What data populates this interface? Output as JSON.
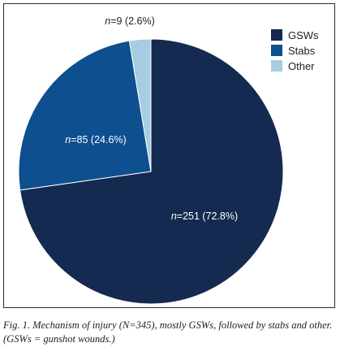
{
  "chart_data": {
    "type": "pie",
    "slices": [
      {
        "label": "GSWs",
        "n": 251,
        "pct": "72.8%",
        "color": "#142a50"
      },
      {
        "label": "Stabs",
        "n": 85,
        "pct": "24.6%",
        "color": "#0d4f8f"
      },
      {
        "label": "Other",
        "n": 9,
        "pct": "2.6%",
        "color": "#a7cce4"
      }
    ],
    "total": 345,
    "legend_position": "top-right"
  },
  "caption": "Fig. 1. Mechanism of injury (N=345), mostly GSWs, followed by stabs and other. (GSWs = gunshot wounds.)"
}
